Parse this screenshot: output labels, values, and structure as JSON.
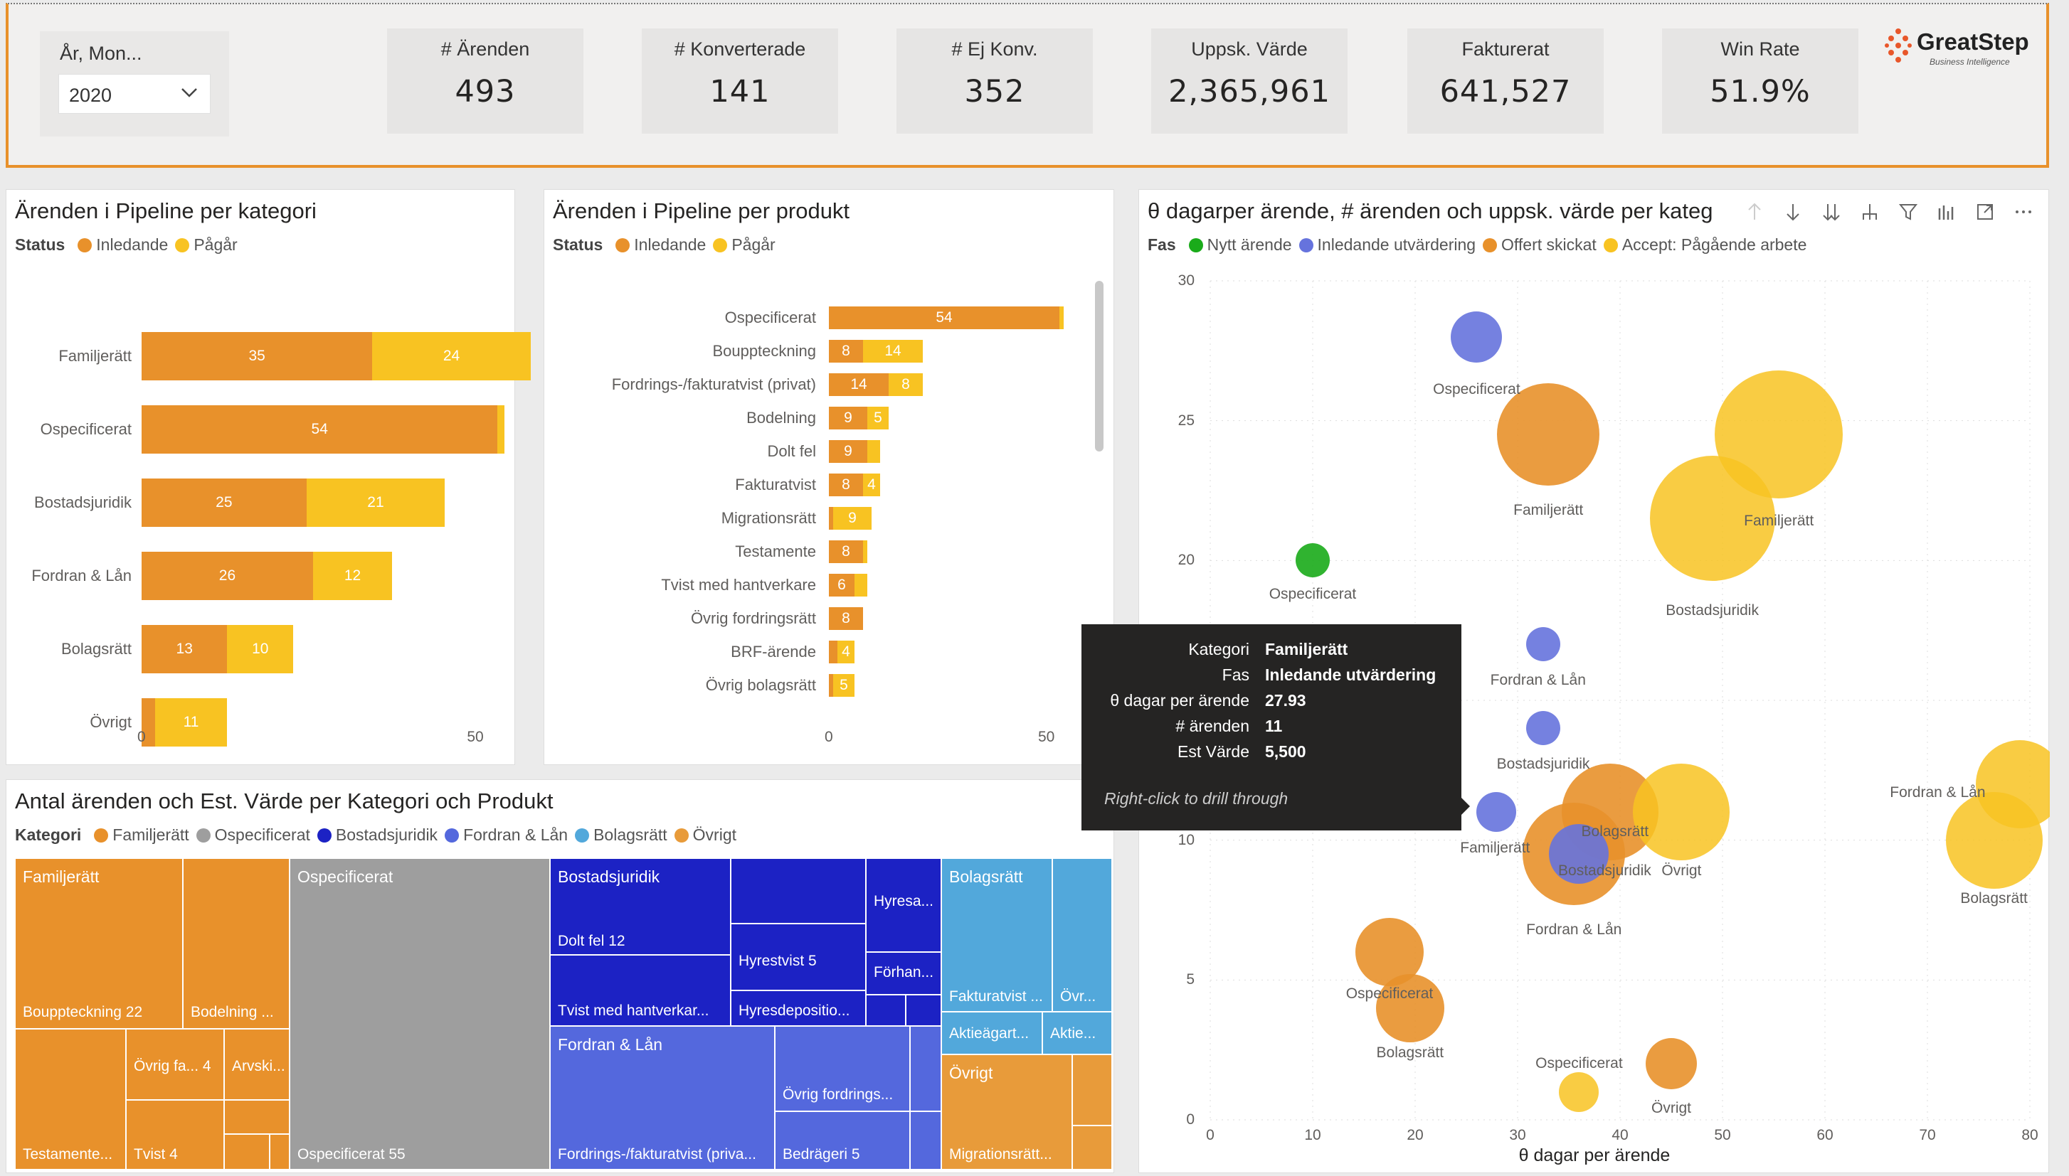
{
  "slicer": {
    "title": "År, Mon...",
    "value": "2020"
  },
  "kpis": [
    {
      "title": "# Ärenden",
      "value": "493"
    },
    {
      "title": "# Konverterade",
      "value": "141"
    },
    {
      "title": "# Ej Konv.",
      "value": "352"
    },
    {
      "title": "Uppsk. Värde",
      "value": "2,365,961"
    },
    {
      "title": "Fakturerat",
      "value": "641,527"
    },
    {
      "title": "Win Rate",
      "value": "51.9%"
    }
  ],
  "logo": {
    "name": "GreatStep",
    "tagline": "Business Intelligence"
  },
  "colors": {
    "orange": "#e8912b",
    "yellow": "#f8c322",
    "green": "#1aab1a",
    "blue": "#6673dd",
    "grey": "#9e9e9e",
    "navy": "#1c22c4",
    "royal": "#5468dd",
    "sky": "#52a8db",
    "amber": "#e89b3a"
  },
  "panel_category": {
    "title": "Ärenden i Pipeline per kategori",
    "legend_label": "Status",
    "legend": [
      "Inledande",
      "Pågår"
    ],
    "chart_data": {
      "type": "bar",
      "categories": [
        "Familjerätt",
        "Ospecificerat",
        "Bostadsjuridik",
        "Fordran & Lån",
        "Bolagsrätt",
        "Övrigt"
      ],
      "series": [
        {
          "name": "Inledande",
          "values": [
            35,
            54,
            25,
            26,
            13,
            2
          ]
        },
        {
          "name": "Pågår",
          "values": [
            24,
            1,
            21,
            12,
            10,
            11
          ]
        }
      ],
      "labels": [
        [
          "35",
          "24"
        ],
        [
          "54",
          ""
        ],
        [
          "25",
          "21"
        ],
        [
          "26",
          "12"
        ],
        [
          "13",
          "10"
        ],
        [
          "",
          "11"
        ]
      ],
      "xticks": [
        "0",
        "50"
      ],
      "xlim": [
        0,
        60
      ]
    }
  },
  "panel_product": {
    "title": "Ärenden i Pipeline per produkt",
    "legend_label": "Status",
    "legend": [
      "Inledande",
      "Pågår"
    ],
    "chart_data": {
      "type": "bar",
      "categories": [
        "Ospecificerat",
        "Bouppteckning",
        "Fordrings-/fakturatvist (privat)",
        "Bodelning",
        "Dolt fel",
        "Fakturatvist",
        "Migrationsrätt",
        "Testamente",
        "Tvist med hantverkare",
        "Övrig fordringsrätt",
        "BRF-ärende",
        "Övrig bolagsrätt"
      ],
      "series": [
        {
          "name": "Inledande",
          "values": [
            54,
            8,
            14,
            9,
            9,
            8,
            1,
            8,
            6,
            8,
            2,
            1
          ]
        },
        {
          "name": "Pågår",
          "values": [
            1,
            14,
            8,
            5,
            3,
            4,
            9,
            1,
            3,
            0,
            4,
            5
          ]
        }
      ],
      "labels": [
        [
          "54",
          ""
        ],
        [
          "8",
          "14"
        ],
        [
          "14",
          "8"
        ],
        [
          "9",
          "5"
        ],
        [
          "9",
          ""
        ],
        [
          "8",
          "4"
        ],
        [
          "",
          "9"
        ],
        [
          "8",
          ""
        ],
        [
          "6",
          ""
        ],
        [
          "8",
          ""
        ],
        [
          "",
          "4"
        ],
        [
          "",
          "5"
        ]
      ],
      "xticks": [
        "0",
        "50"
      ],
      "xlim": [
        0,
        60
      ]
    }
  },
  "panel_treemap": {
    "title": "Antal ärenden och Est. Värde per Kategori och Produkt",
    "legend_label": "Kategori",
    "legend": [
      "Familjerätt",
      "Ospecificerat",
      "Bostadsjuridik",
      "Fordran & Lån",
      "Bolagsrätt",
      "Övrigt"
    ],
    "headers": [
      "Familjerätt",
      "Ospecificerat",
      "Bostadsjuridik",
      "Fordran & Lån",
      "Bolagsrätt",
      "Övrigt"
    ],
    "cells": [
      "Bouppteckning 22",
      "Bodelning ...",
      "Övrig fa... 4",
      "Arvski...",
      "Testamente...",
      "Tvist 4",
      "Ospecificerat 55",
      "Dolt fel 12",
      "Hyresa...",
      "Hyrestvist 5",
      "Förhan...",
      "Tvist med hantverkar...",
      "Hyresdepositio...",
      "Övrig fordrings...",
      "Fordrings-/fakturatvist (priva...",
      "Bedrägeri 5",
      "Fakturatvist ...",
      "Övr...",
      "Aktieägart...",
      "Aktie...",
      "Migrationsrätt..."
    ]
  },
  "panel_scatter": {
    "title": "θ dagarper ärende, # ärenden och uppsk. värde per kateg",
    "legend_label": "Fas",
    "legend": [
      "Nytt ärende",
      "Inledande utvärdering",
      "Offert skickat",
      "Accept: Pågående arbete"
    ],
    "chart_data": {
      "type": "scatter",
      "xlabel": "θ dagar per ärende",
      "xlim": [
        0,
        80
      ],
      "ylim": [
        0,
        30
      ],
      "xticks": [
        "0",
        "10",
        "20",
        "30",
        "40",
        "50",
        "60",
        "70",
        "80"
      ],
      "yticks": [
        "30",
        "25",
        "20",
        "15",
        "10",
        "5",
        "0"
      ],
      "points": [
        {
          "label": "Ospecificerat",
          "x": 26,
          "y": 28,
          "size": 36,
          "phase": 1
        },
        {
          "label": "Familjerätt",
          "x": 33,
          "y": 24.5,
          "size": 72,
          "phase": 2
        },
        {
          "label": "Familjerätt",
          "x": 55.5,
          "y": 24.5,
          "size": 90,
          "phase": 3
        },
        {
          "label": "Bostadsjuridik",
          "x": 49,
          "y": 21.5,
          "size": 88,
          "phase": 3
        },
        {
          "label": "Ospecificerat",
          "x": 10,
          "y": 20,
          "size": 24,
          "phase": 0
        },
        {
          "label": "Fordran & Lån",
          "x": 32.5,
          "y": 17,
          "size": 24,
          "phase": 1
        },
        {
          "label": "Bostadsjuridik",
          "x": 32.5,
          "y": 14,
          "size": 24,
          "phase": 1
        },
        {
          "label": "Familjerätt",
          "x": 27.93,
          "y": 11,
          "size": 28,
          "phase": 1
        },
        {
          "label": "Bolagsrätt",
          "x": 39,
          "y": 11,
          "size": 68,
          "phase": 2
        },
        {
          "label": "Övrigt",
          "x": 46,
          "y": 11,
          "size": 68,
          "phase": 3
        },
        {
          "label": "Fordran & Lån",
          "x": 35.5,
          "y": 9.5,
          "size": 72,
          "phase": 2
        },
        {
          "label": "Bostadsjuridik",
          "x": 36,
          "y": 9.5,
          "size": 42,
          "phase": 1
        },
        {
          "label": "Fordran & Lån",
          "x": 79,
          "y": 12,
          "size": 62,
          "phase": 3
        },
        {
          "label": "Bolagsrätt",
          "x": 76.5,
          "y": 10,
          "size": 68,
          "phase": 3
        },
        {
          "label": "Ospecificerat",
          "x": 17.5,
          "y": 6,
          "size": 48,
          "phase": 2
        },
        {
          "label": "Bolagsrätt",
          "x": 19.5,
          "y": 4,
          "size": 48,
          "phase": 2
        },
        {
          "label": "Övrigt",
          "x": 45,
          "y": 2,
          "size": 36,
          "phase": 2
        },
        {
          "label": "Ospecificerat",
          "x": 36,
          "y": 1,
          "size": 28,
          "phase": 3
        }
      ],
      "point_labels": [
        {
          "text": "Ospecificerat",
          "x": 26,
          "y": 26.1
        },
        {
          "text": "Familjerätt",
          "x": 33,
          "y": 21.8
        },
        {
          "text": "Familjerätt",
          "x": 55.5,
          "y": 21.4
        },
        {
          "text": "Bostadsjuridik",
          "x": 49,
          "y": 18.2
        },
        {
          "text": "Ospecificerat",
          "x": 10,
          "y": 18.8
        },
        {
          "text": "Fordran & Lån",
          "x": 32,
          "y": 15.7
        },
        {
          "text": "Bostadsjuridik",
          "x": 32.5,
          "y": 12.7
        },
        {
          "text": "Familjerätt",
          "x": 27.8,
          "y": 9.7
        },
        {
          "text": "Bolagsrätt",
          "x": 39.5,
          "y": 10.3
        },
        {
          "text": "Bostadsjuridik",
          "x": 38.5,
          "y": 8.9
        },
        {
          "text": "Övrigt",
          "x": 46,
          "y": 8.9
        },
        {
          "text": "Fordran & Lån",
          "x": 71,
          "y": 11.7
        },
        {
          "text": "Bolagsrätt",
          "x": 76.5,
          "y": 7.9
        },
        {
          "text": "Fordran & Lån",
          "x": 35.5,
          "y": 6.8
        },
        {
          "text": "Ospecificerat",
          "x": 17.5,
          "y": 4.5
        },
        {
          "text": "Bolagsrätt",
          "x": 19.5,
          "y": 2.4
        },
        {
          "text": "Ospecificerat",
          "x": 36,
          "y": 2
        },
        {
          "text": "Övrigt",
          "x": 45,
          "y": 0.4
        }
      ]
    }
  },
  "tooltip": {
    "rows": [
      {
        "key": "Kategori",
        "value": "Familjerätt"
      },
      {
        "key": "Fas",
        "value": "Inledande utvärdering"
      },
      {
        "key": "θ dagar per ärende",
        "value": "27.93"
      },
      {
        "key": "# ärenden",
        "value": "11"
      },
      {
        "key": "Est Värde",
        "value": "5,500"
      }
    ],
    "footer": "Right-click to drill through"
  }
}
